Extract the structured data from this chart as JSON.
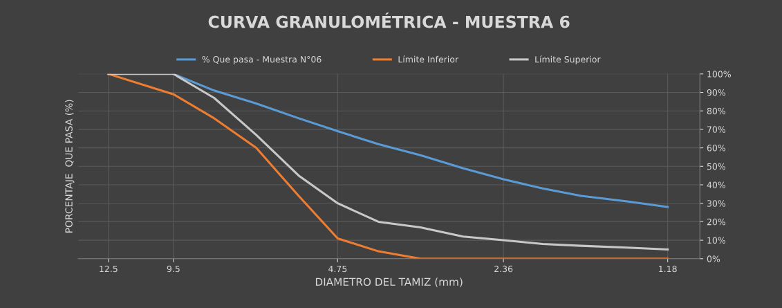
{
  "chart_data": {
    "type": "line",
    "title": "CURVA GRANULOMÉTRICA - MUESTRA 6",
    "xlabel": "DIAMETRO DEL TAMIZ (mm)",
    "ylabel": "PORCENTAJE  QUE PASA (%)",
    "log": "x",
    "xlim": [
      14.2,
      1.03
    ],
    "xticks": [
      12.5,
      9.5,
      4.75,
      2.36,
      1.18
    ],
    "ylim": [
      0,
      100
    ],
    "yticks": [
      {
        "value": 0,
        "label": "0%"
      },
      {
        "value": 10,
        "label": "10%"
      },
      {
        "value": 20,
        "label": "20%"
      },
      {
        "value": 30,
        "label": "30%"
      },
      {
        "value": 40,
        "label": "40%"
      },
      {
        "value": 50,
        "label": "50%"
      },
      {
        "value": 60,
        "label": "60%"
      },
      {
        "value": 70,
        "label": "70%"
      },
      {
        "value": 80,
        "label": "80%"
      },
      {
        "value": 90,
        "label": "90%"
      },
      {
        "value": 100,
        "label": "100%"
      }
    ],
    "grid": true,
    "legend": "top",
    "marker": "none",
    "line_style": "solid",
    "x": [
      12.5,
      9.5,
      8,
      6.7,
      5.6,
      4.75,
      4.0,
      3.35,
      2.8,
      2.36,
      2.0,
      1.7,
      1.4,
      1.18
    ],
    "series": [
      {
        "name": "% Que pasa - Muestra N°06",
        "color": "#5b9bd5",
        "values": [
          null,
          100,
          91,
          84,
          76,
          69,
          62,
          56,
          49,
          43,
          38,
          34,
          31,
          28
        ]
      },
      {
        "name": "Límite Inferior",
        "color": "#ed7d31",
        "values": [
          100,
          89,
          76,
          60,
          34,
          11,
          4,
          0,
          0,
          0,
          0,
          0,
          0,
          0
        ]
      },
      {
        "name": "Límite Superior",
        "color": "#c8c8c8",
        "values": [
          100,
          100,
          87,
          67,
          45,
          30,
          20,
          17,
          12,
          10,
          8,
          7,
          6,
          5
        ]
      }
    ]
  }
}
